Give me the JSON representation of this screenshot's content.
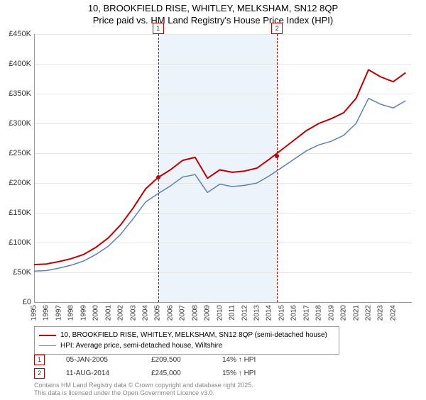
{
  "title_line1": "10, BROOKFIELD RISE, WHITLEY, MELKSHAM, SN12 8QP",
  "title_line2": "Price paid vs. HM Land Registry's House Price Index (HPI)",
  "chart": {
    "type": "line",
    "background_color": "#ffffff",
    "grid_color": "#e6e6e6",
    "axis_color": "#999999",
    "xlim": [
      1995,
      2025.5
    ],
    "ylim": [
      0,
      450
    ],
    "ytick_step": 50,
    "yticks": [
      "£0",
      "£50K",
      "£100K",
      "£150K",
      "£200K",
      "£250K",
      "£300K",
      "£350K",
      "£400K",
      "£450K"
    ],
    "xticks": [
      1995,
      1996,
      1997,
      1998,
      1999,
      2000,
      2001,
      2002,
      2003,
      2004,
      2005,
      2006,
      2007,
      2008,
      2009,
      2010,
      2011,
      2012,
      2013,
      2014,
      2015,
      2016,
      2017,
      2018,
      2019,
      2020,
      2021,
      2022,
      2023,
      2024
    ],
    "band_color": "#ecf3fb",
    "band_start": 2005.02,
    "band_end": 2014.62,
    "marker_color": "#c00000",
    "markers": [
      {
        "label": "1",
        "x": 2005.02
      },
      {
        "label": "2",
        "x": 2014.62
      }
    ],
    "series": [
      {
        "name": "price_paid",
        "color": "#c00000",
        "width": 2,
        "data": [
          [
            1995,
            63
          ],
          [
            1996,
            64
          ],
          [
            1997,
            68
          ],
          [
            1998,
            73
          ],
          [
            1999,
            80
          ],
          [
            2000,
            92
          ],
          [
            2001,
            108
          ],
          [
            2002,
            130
          ],
          [
            2003,
            158
          ],
          [
            2004,
            190
          ],
          [
            2005,
            209
          ],
          [
            2006,
            222
          ],
          [
            2007,
            238
          ],
          [
            2008,
            243
          ],
          [
            2009,
            208
          ],
          [
            2010,
            222
          ],
          [
            2011,
            218
          ],
          [
            2012,
            220
          ],
          [
            2013,
            225
          ],
          [
            2014,
            240
          ],
          [
            2015,
            256
          ],
          [
            2016,
            272
          ],
          [
            2017,
            288
          ],
          [
            2018,
            300
          ],
          [
            2019,
            308
          ],
          [
            2020,
            318
          ],
          [
            2021,
            342
          ],
          [
            2022,
            390
          ],
          [
            2023,
            378
          ],
          [
            2024,
            370
          ],
          [
            2025,
            385
          ]
        ]
      },
      {
        "name": "hpi",
        "color": "#5b7fbf",
        "width": 1.5,
        "data": [
          [
            1995,
            52
          ],
          [
            1996,
            53
          ],
          [
            1997,
            57
          ],
          [
            1998,
            62
          ],
          [
            1999,
            69
          ],
          [
            2000,
            80
          ],
          [
            2001,
            94
          ],
          [
            2002,
            114
          ],
          [
            2003,
            140
          ],
          [
            2004,
            168
          ],
          [
            2005,
            182
          ],
          [
            2006,
            195
          ],
          [
            2007,
            210
          ],
          [
            2008,
            214
          ],
          [
            2009,
            184
          ],
          [
            2010,
            198
          ],
          [
            2011,
            194
          ],
          [
            2012,
            196
          ],
          [
            2013,
            200
          ],
          [
            2014,
            212
          ],
          [
            2015,
            226
          ],
          [
            2016,
            240
          ],
          [
            2017,
            254
          ],
          [
            2018,
            264
          ],
          [
            2019,
            270
          ],
          [
            2020,
            280
          ],
          [
            2021,
            300
          ],
          [
            2022,
            342
          ],
          [
            2023,
            332
          ],
          [
            2024,
            326
          ],
          [
            2025,
            338
          ]
        ]
      }
    ],
    "sale_points": [
      {
        "x": 2005.02,
        "y": 209.5
      },
      {
        "x": 2014.62,
        "y": 245
      }
    ]
  },
  "legend": {
    "items": [
      {
        "color": "#c00000",
        "width": 2,
        "label": "10, BROOKFIELD RISE, WHITLEY, MELKSHAM, SN12 8QP (semi-detached house)"
      },
      {
        "color": "#5b7fbf",
        "width": 1.5,
        "label": "HPI: Average price, semi-detached house, Wiltshire"
      }
    ]
  },
  "sales": [
    {
      "num": "1",
      "date": "05-JAN-2005",
      "price": "£209,500",
      "delta": "14% ↑ HPI"
    },
    {
      "num": "2",
      "date": "11-AUG-2014",
      "price": "£245,000",
      "delta": "15% ↑ HPI"
    }
  ],
  "attribution_line1": "Contains HM Land Registry data © Crown copyright and database right 2025.",
  "attribution_line2": "This data is licensed under the Open Government Licence v3.0."
}
